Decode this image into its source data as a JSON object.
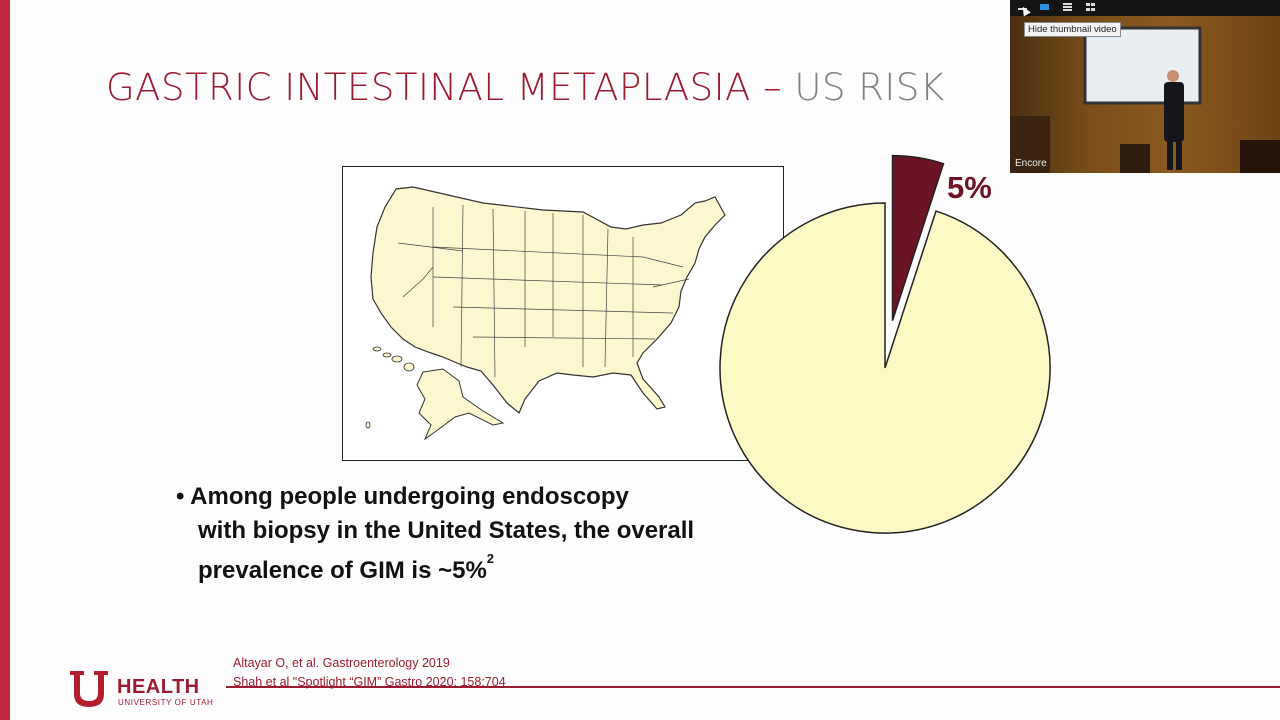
{
  "slide": {
    "title_main": "GASTRIC INTESTINAL METAPLASIA –",
    "title_sub": "US RISK",
    "bullet_line1": "• Among people undergoing endoscopy",
    "bullet_line2": "with biopsy in the United States, the overall",
    "bullet_line3": "prevalence of GIM is ~5%",
    "bullet_superscript": "2",
    "reference_1": "Altayar O, et al. Gastroenterology 2019",
    "reference_2": "Shah et al \"Spotlight “GIM” Gastro 2020; 158:704",
    "logo_word": "HEALTH",
    "logo_sub": "UNIVERSITY OF UTAH"
  },
  "pie": {
    "label": "5%",
    "gim_percent": 5,
    "colors": {
      "gim": "#6a1424",
      "rest": "#fdf9c4",
      "outline": "#222222"
    }
  },
  "colors": {
    "accent": "#9b1b30",
    "title_sub": "#808080",
    "left_bar": "#c1273f"
  },
  "video": {
    "tooltip": "Hide thumbnail video",
    "caption": "Encore",
    "toolbar_icons": [
      "minimize-icon",
      "video-icon",
      "menu-icon",
      "grid-icon"
    ]
  }
}
